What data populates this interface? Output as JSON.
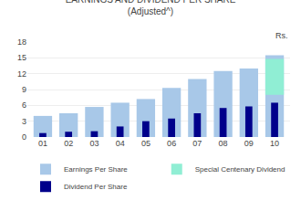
{
  "chart_data": {
    "type": "bar",
    "title": "EARNINGS AND DIVIDEND PER SHARE",
    "subtitle": "(Adjusted^)",
    "annotations": [
      "Rs."
    ],
    "categories": [
      "01",
      "02",
      "03",
      "04",
      "05",
      "06",
      "07",
      "08",
      "09",
      "10"
    ],
    "series": [
      {
        "name": "Earnings Per Share",
        "color": "#A8C8E8",
        "values": [
          4.0,
          4.5,
          5.7,
          6.5,
          7.2,
          9.3,
          11.0,
          12.5,
          13.0,
          15.5
        ]
      },
      {
        "name": "Special Centenary Dividend",
        "color": "#90EED4",
        "values": [
          0,
          0,
          0,
          0,
          0,
          0,
          0,
          0,
          0,
          6.8
        ],
        "base": [
          0,
          0,
          0,
          0,
          0,
          0,
          0,
          0,
          0,
          8.0
        ]
      },
      {
        "name": "Dividend Per Share",
        "color": "#00008B",
        "values": [
          0.75,
          1.0,
          1.1,
          2.0,
          3.0,
          3.5,
          4.5,
          5.5,
          5.8,
          6.5
        ]
      }
    ],
    "ylim": [
      0,
      18
    ],
    "yticks": [
      0,
      3,
      6,
      9,
      12,
      15,
      18
    ],
    "grid": true,
    "legend": "bottom"
  }
}
